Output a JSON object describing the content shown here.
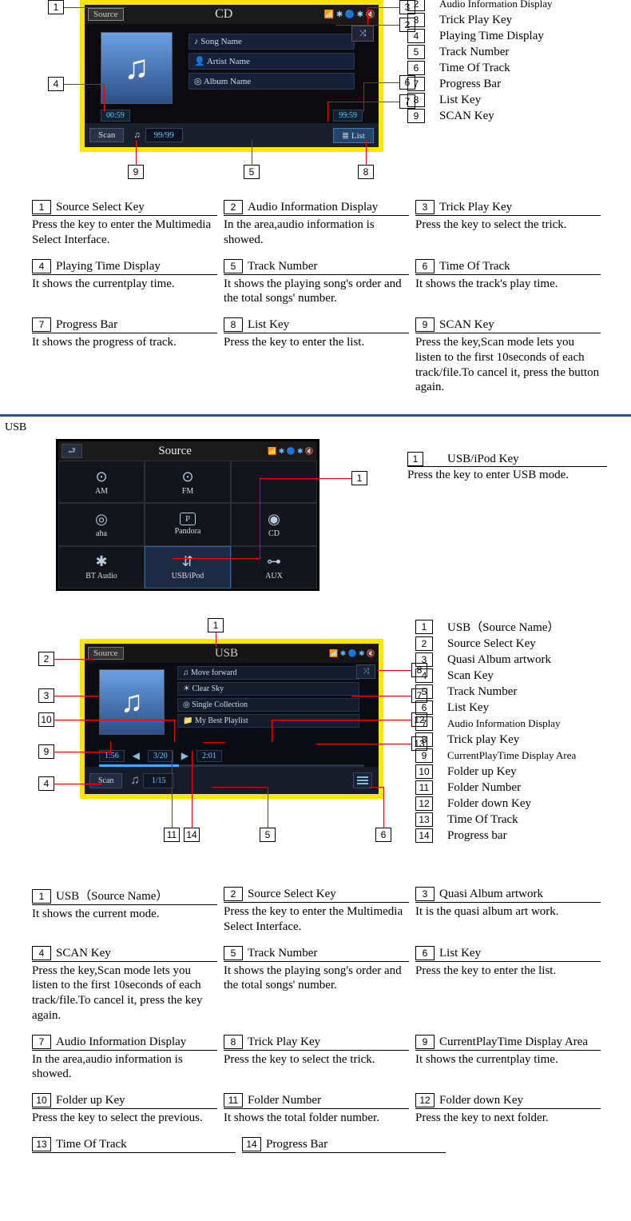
{
  "cd": {
    "source_btn": "Source",
    "title": "CD",
    "status": "📶 ✱ 🔵 ✱ 🔇",
    "song": "♪ Song Name",
    "artist": "👤 Artist Name",
    "album": "◎ Album Name",
    "trick": "⤨",
    "time_left": "00:59",
    "time_right": "99:59",
    "scan_btn": "Scan",
    "note_icon": "♫",
    "track_num": "99/99",
    "list_btn": "≣ List",
    "legend": [
      {
        "n": "2",
        "t": "Audio Information Display",
        "sm": true
      },
      {
        "n": "3",
        "t": "Trick Play Key"
      },
      {
        "n": "4",
        "t": "Playing Time Display"
      },
      {
        "n": "5",
        "t": "Track Number"
      },
      {
        "n": "6",
        "t": "Time Of Track"
      },
      {
        "n": "7",
        "t": "Progress Bar"
      },
      {
        "n": "8",
        "t": "List Key"
      },
      {
        "n": "9",
        "t": "SCAN Key"
      }
    ],
    "callouts": {
      "n1": "1",
      "n2": "2",
      "n3": "3",
      "n4": "4",
      "n5": "5",
      "n6": "6",
      "n7": "7",
      "n8": "8",
      "n9": "9"
    },
    "desc": [
      [
        {
          "n": "1",
          "h": "Source Select Key",
          "b": "Press the key to enter the Multimedia Select Interface."
        },
        {
          "n": "2",
          "h": "Audio Information Display",
          "b": "In the area,audio information is showed."
        },
        {
          "n": "3",
          "h": "Trick Play Key",
          "b": "Press the key to select the trick."
        }
      ],
      [
        {
          "n": "4",
          "h": "Playing Time Display",
          "b": "It shows  the currentplay time."
        },
        {
          "n": "5",
          "h": "Track Number",
          "b": "It shows the playing song's order and the total songs' number."
        },
        {
          "n": "6",
          "h": "Time Of Track",
          "b": "It shows the track's play time."
        }
      ],
      [
        {
          "n": "7",
          "h": "Progress Bar",
          "b": "It shows the progress of track."
        },
        {
          "n": "8",
          "h": "List Key",
          "b": "Press the key to enter the list."
        },
        {
          "n": "9",
          "h": "SCAN Key",
          "b": "Press the key,Scan mode lets you listen to the first 10seconds of each track/file.To cancel it, press the button again."
        }
      ]
    ]
  },
  "usb_section_label": "USB",
  "src": {
    "back": "⮐",
    "title": "Source",
    "status": "📶 ✱ 🔵 ✱ 🔇",
    "cells": [
      {
        "ic": "⊙",
        "t": "AM"
      },
      {
        "ic": "⊙",
        "t": "FM"
      },
      {
        "ic": "",
        "t": ""
      },
      {
        "ic": "◎",
        "t": "aha"
      },
      {
        "ic": "P",
        "t": "Pandora",
        "p": true
      },
      {
        "ic": "◉",
        "t": "CD"
      },
      {
        "ic": "✱",
        "t": "BT Audio"
      },
      {
        "ic": "⇵",
        "t": "USB/iPod",
        "sel": true
      },
      {
        "ic": "⊶",
        "t": "AUX"
      }
    ],
    "callout": "1",
    "legend": {
      "n": "1",
      "t": "USB/iPod Key"
    },
    "legend_body": "Press the key to enter USB mode."
  },
  "usb": {
    "source_btn": "Source",
    "title": "USB",
    "status": "📶 ✱ 🔵 ✱ 🔇",
    "rows": [
      "♫ Move forward",
      "☀ Clear Sky",
      "◎ Single Collection",
      "📁 My Best Playlist"
    ],
    "trick": "⤨",
    "t_left": "1:56",
    "folder": "3/20",
    "t_right": "2:01",
    "scan_btn": "Scan",
    "note": "♫",
    "track": "1/15",
    "legend": [
      {
        "n": "1",
        "t": "USB（Source Name）"
      },
      {
        "n": "2",
        "t": "Source Select Key"
      },
      {
        "n": "3",
        "t": "Quasi Album artwork"
      },
      {
        "n": "4",
        "t": "Scan Key"
      },
      {
        "n": "5",
        "t": "Track Number"
      },
      {
        "n": "6",
        "t": "List Key"
      },
      {
        "n": "7",
        "t": "Audio Information Display",
        "sm": true
      },
      {
        "n": "8",
        "t": "Trick play Key"
      },
      {
        "n": "9",
        "t": "CurrentPlayTime Display Area",
        "sm": true
      },
      {
        "n": "10",
        "t": "Folder up Key"
      },
      {
        "n": "11",
        "t": "Folder Number"
      },
      {
        "n": "12",
        "t": "Folder down Key"
      },
      {
        "n": "13",
        "t": "Time Of Track"
      },
      {
        "n": "14",
        "t": "Progress bar"
      }
    ],
    "callouts": {
      "n1": "1",
      "n2": "2",
      "n3": "3",
      "n4": "4",
      "n5": "5",
      "n6": "6",
      "n7": "7",
      "n8": "8",
      "n9": "9",
      "n10": "10",
      "n11": "11",
      "n12": "12",
      "n13": "13",
      "n14": "14"
    },
    "desc": [
      [
        {
          "n": "1",
          "h": "USB（Source Name）",
          "b": "It shows the current mode."
        },
        {
          "n": "2",
          "h": "Source Select Key",
          "b": "Press the key to enter the Multimedia Select Interface."
        },
        {
          "n": "3",
          "h": "Quasi Album artwork",
          "b": "It is the quasi album art work."
        }
      ],
      [
        {
          "n": "4",
          "h": "SCAN Key",
          "b": "Press the key,Scan mode lets you listen to the first 10seconds of each track/file.To cancel it, press the key again."
        },
        {
          "n": "5",
          "h": "Track Number",
          "b": "It shows the playing song's order and the total songs' number."
        },
        {
          "n": "6",
          "h": "List Key",
          "b": "Press the key to enter the list."
        }
      ],
      [
        {
          "n": "7",
          "h": "Audio Information Display",
          "b": "In the area,audio information is showed."
        },
        {
          "n": "8",
          "h": "Trick Play Key",
          "b": "Press the key to select the trick."
        },
        {
          "n": "9",
          "h": "CurrentPlayTime Display Area",
          "b": "It shows  the currentplay time."
        }
      ],
      [
        {
          "n": "10",
          "h": "Folder up Key",
          "b": "Press the key to select the previous."
        },
        {
          "n": "11",
          "h": "Folder Number",
          "b": "It shows the total folder number."
        },
        {
          "n": "12",
          "h": "Folder down Key",
          "b": "Press the key to next folder."
        }
      ],
      [
        {
          "n": "13",
          "h": "Time Of Track",
          "b": ""
        },
        {
          "n": "14",
          "h": "Progress Bar",
          "b": ""
        }
      ]
    ]
  }
}
